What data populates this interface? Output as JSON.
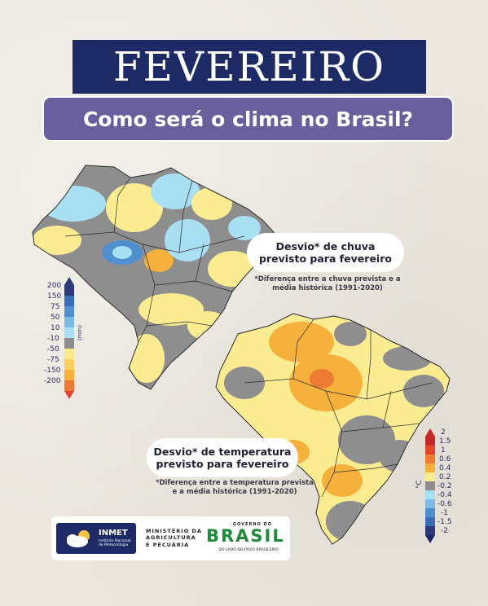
{
  "title": "FEVEREIRO",
  "subtitle": "Como será o clima no Brasil?",
  "rain_map": {
    "heading_line1": "Desvio* de chuva",
    "heading_line2": "previsto para fevereiro",
    "note_line1": "*Diferença entre a chuva prevista e a",
    "note_line2": "média histórica (1991-2020)",
    "unit": "(mm)",
    "legend": [
      "200",
      "150",
      "75",
      "50",
      "10",
      "-10",
      "-50",
      "-75",
      "-150",
      "-200"
    ],
    "colors": {
      "strong_wet": "#2c3a7c",
      "wet": "#4f8fd0",
      "light_wet": "#a8dff2",
      "neutral": "#8e8e8e",
      "light_dry": "#fbeb91",
      "dry": "#f6b03c",
      "strong_dry": "#e2452b"
    }
  },
  "temp_map": {
    "heading_line1": "Desvio* de temperatura",
    "heading_line2": "previsto para fevereiro",
    "note_line1": "*Diferença entre a temperatura prevista",
    "note_line2": "e a média histórica (1991-2020)",
    "unit": "°C",
    "legend": [
      "2",
      "1.5",
      "1",
      "0.6",
      "0.4",
      "0.2",
      "-0.2",
      "-0.4",
      "-0.6",
      "-1",
      "-1.5",
      "-2"
    ]
  },
  "logos": {
    "inmet": "INMET",
    "inmet_sub": "Instituto Nacional de Meteorologia",
    "ministerio_line1": "MINISTÉRIO DA",
    "ministerio_line2": "AGRICULTURA",
    "ministerio_line3": "E PECUÁRIA",
    "governo_do": "GOVERNO DO",
    "brasil": "BRASIL",
    "lado": "DO LADO DO POVO BRASILEIRO"
  }
}
